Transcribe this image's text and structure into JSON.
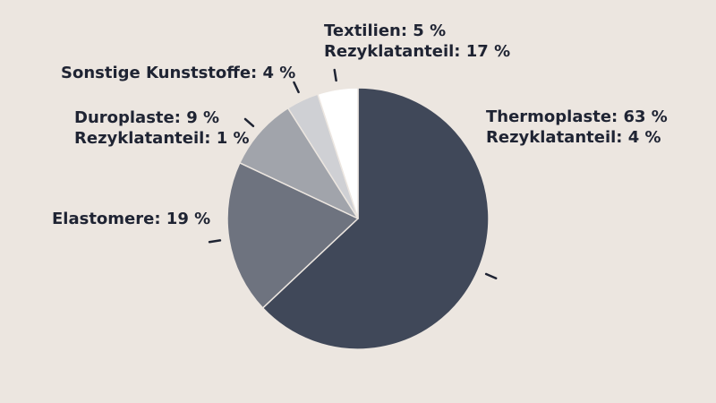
{
  "chart_data": {
    "type": "pie",
    "title": "",
    "start_angle_deg": 0,
    "direction": "clockwise",
    "slices": [
      {
        "name": "Thermoplaste",
        "value_text": "63 %",
        "value": 63,
        "extra": "Rezyklatanteil: 4 %",
        "recycled_share": 4,
        "color": "#404859"
      },
      {
        "name": "Elastomere",
        "value_text": "19 %",
        "value": 19,
        "extra": "",
        "color": "#6e737f"
      },
      {
        "name": "Duroplaste",
        "value_text": "9 %",
        "value": 9,
        "extra": "Rezyklatanteil: 1 %",
        "recycled_share": 1,
        "color": "#a1a4ab"
      },
      {
        "name": "Sonstige Kunststoffe",
        "value_text": "4 %",
        "value": 4,
        "extra": "",
        "color": "#cfd0d4"
      },
      {
        "name": "Textilien",
        "value_text": "5 %",
        "value": 5,
        "extra": "Rezyklatanteil: 17 %",
        "recycled_share": 17,
        "color": "#ffffff"
      }
    ]
  }
}
